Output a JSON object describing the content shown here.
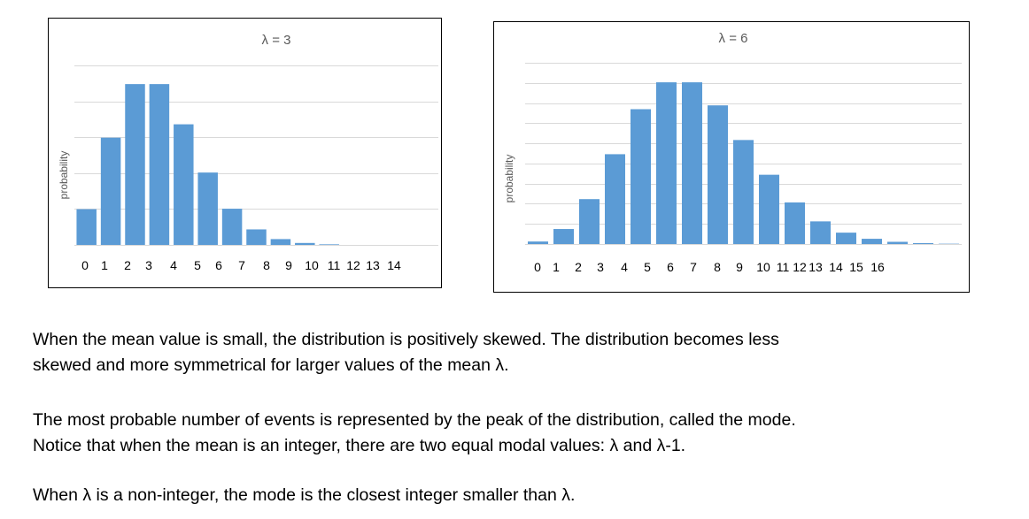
{
  "chart_data": [
    {
      "type": "bar",
      "title": "λ = 3",
      "xlabel": "",
      "ylabel": "probability",
      "categories": [
        "0",
        "1",
        "2",
        "3",
        "4",
        "5",
        "6",
        "7",
        "8",
        "9",
        "10",
        "11",
        "12",
        "13",
        "14"
      ],
      "values": [
        0.0498,
        0.1494,
        0.224,
        0.224,
        0.168,
        0.1008,
        0.0504,
        0.0216,
        0.0081,
        0.0027,
        0.0008,
        0.0002,
        0.0001,
        0.0,
        0.0
      ],
      "ylim": [
        0,
        0.25
      ],
      "grid": true,
      "legend": "none",
      "bar_color": "#5b9bd5"
    },
    {
      "type": "bar",
      "title": "λ = 6",
      "xlabel": "",
      "ylabel": "probability",
      "categories": [
        "0",
        "1",
        "2",
        "3",
        "4",
        "5",
        "6",
        "7",
        "8",
        "9",
        "10",
        "11",
        "12",
        "13",
        "14",
        "15",
        "16"
      ],
      "values": [
        0.0025,
        0.0149,
        0.0446,
        0.0892,
        0.1339,
        0.1606,
        0.1606,
        0.1377,
        0.1033,
        0.0688,
        0.0413,
        0.0225,
        0.0113,
        0.0052,
        0.0022,
        0.0009,
        0.0003
      ],
      "ylim": [
        0,
        0.18
      ],
      "grid": true,
      "legend": "none",
      "bar_color": "#5b9bd5"
    }
  ],
  "text": {
    "p1_line1": "When the mean value is small, the distribution is positively skewed.  The distribution becomes less",
    "p1_line2": "skewed and more symmetrical for larger values of the mean λ.",
    "p2_line1": "The most probable number of events is represented by the peak of the distribution, called the mode.",
    "p2_line2": "Notice that when the mean is an integer, there are two equal modal values: λ and  λ-1.",
    "p3_line1": "When λ is a non-integer, the mode is the closest integer smaller than λ."
  }
}
